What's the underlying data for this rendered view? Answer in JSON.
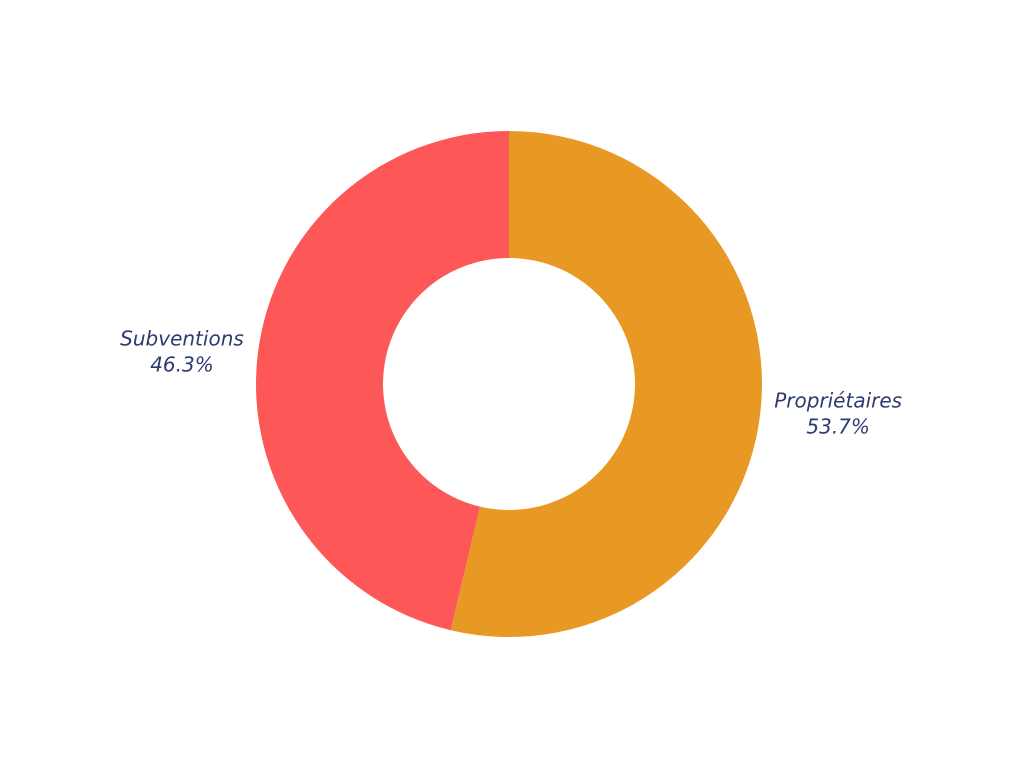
{
  "chart_data": {
    "type": "pie",
    "categories": [
      "Propriétaires",
      "Subventions"
    ],
    "values": [
      53.7,
      46.3
    ],
    "value_labels": [
      "53.7%",
      "46.3%"
    ],
    "colors": [
      "#e89923",
      "#fe5757"
    ]
  }
}
